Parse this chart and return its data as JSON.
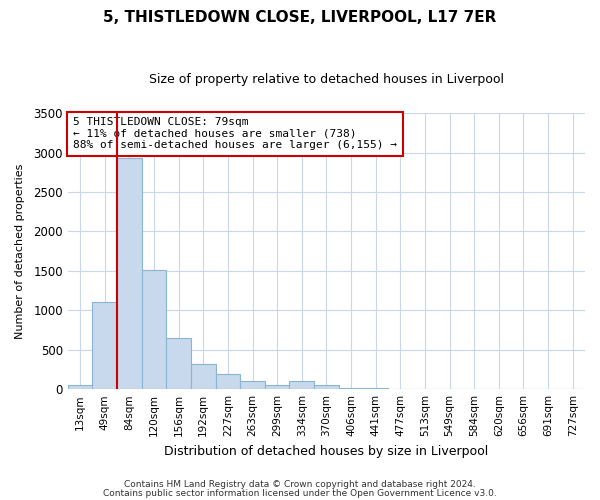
{
  "title": "5, THISTLEDOWN CLOSE, LIVERPOOL, L17 7ER",
  "subtitle": "Size of property relative to detached houses in Liverpool",
  "xlabel": "Distribution of detached houses by size in Liverpool",
  "ylabel": "Number of detached properties",
  "bar_labels": [
    "13sqm",
    "49sqm",
    "84sqm",
    "120sqm",
    "156sqm",
    "192sqm",
    "227sqm",
    "263sqm",
    "299sqm",
    "334sqm",
    "370sqm",
    "406sqm",
    "441sqm",
    "477sqm",
    "513sqm",
    "549sqm",
    "584sqm",
    "620sqm",
    "656sqm",
    "691sqm",
    "727sqm"
  ],
  "bar_values": [
    50,
    1100,
    2930,
    1510,
    650,
    325,
    195,
    100,
    55,
    100,
    55,
    20,
    20,
    5,
    0,
    0,
    0,
    0,
    0,
    0,
    0
  ],
  "bar_color": "#c9d9ed",
  "bar_edgecolor": "#8ab4d4",
  "annotation_line1": "5 THISTLEDOWN CLOSE: 79sqm",
  "annotation_line2": "← 11% of detached houses are smaller (738)",
  "annotation_line3": "88% of semi-detached houses are larger (6,155) →",
  "annotation_box_edgecolor": "#cc0000",
  "redline_x": 1.5,
  "ylim": [
    0,
    3500
  ],
  "yticks": [
    0,
    500,
    1000,
    1500,
    2000,
    2500,
    3000,
    3500
  ],
  "footer_line1": "Contains HM Land Registry data © Crown copyright and database right 2024.",
  "footer_line2": "Contains public sector information licensed under the Open Government Licence v3.0.",
  "bg_color": "#ffffff",
  "grid_color": "#c8d8e8",
  "title_fontsize": 11,
  "subtitle_fontsize": 9
}
